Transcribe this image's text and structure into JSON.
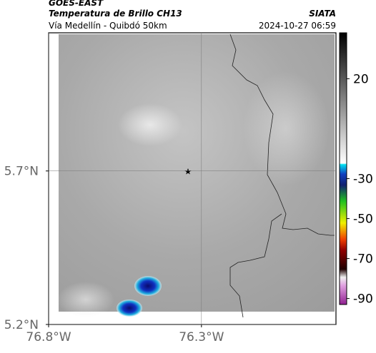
{
  "header": {
    "source": "GOES-EAST",
    "title": "Temperatura de Brillo CH13",
    "org": "SIATA",
    "subtitle": "Vía Medellín - Quibdó 50km",
    "timestamp": "2024-10-27 06:59"
  },
  "map": {
    "xlim": [
      -76.8,
      -75.86
    ],
    "ylim": [
      5.2,
      6.15
    ],
    "xticks": [
      {
        "value": -76.8,
        "label": "76.8°W"
      },
      {
        "value": -76.3,
        "label": "76.3°W"
      }
    ],
    "yticks": [
      {
        "value": 5.2,
        "label": "5.2°N"
      },
      {
        "value": 5.7,
        "label": "5.7°N"
      }
    ],
    "grid": true
  },
  "colorbar": {
    "lim": [
      -93,
      43
    ],
    "ticks": [
      20,
      -30,
      -50,
      -70,
      -90
    ]
  }
}
